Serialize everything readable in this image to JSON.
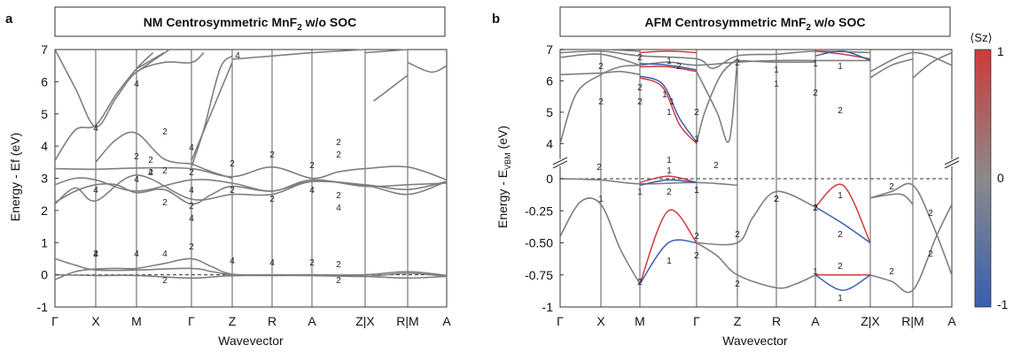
{
  "colors": {
    "band": "#7f7f7f",
    "up": "#d03a3a",
    "down": "#3a5fb0",
    "kpath": "#333333"
  },
  "panel_a": {
    "letter": "a",
    "title_main": "NM Centrosymmetric MnF",
    "title_sub": "2",
    "title_tail": " w/o SOC"
  },
  "panel_b": {
    "letter": "b",
    "title_main": "AFM Centrosymmetric MnF",
    "title_sub": "2",
    "title_tail": " w/o SOC"
  },
  "colorbar": {
    "title": "⟨Sz⟩",
    "ticks": [
      "1",
      "0",
      "-1"
    ]
  },
  "chart_data": [
    {
      "type": "line",
      "title": "NM Centrosymmetric MnF2 w/o SOC",
      "xlabel": "Wavevector",
      "ylabel": "Energy - Ef (eV)",
      "ylim": [
        -1,
        7
      ],
      "yticks": [
        "7",
        "6",
        "5",
        "4",
        "3",
        "2",
        "1",
        "0",
        "-1"
      ],
      "kpath": [
        "Γ",
        "X",
        "M",
        "Γ",
        "Z",
        "R",
        "A",
        "Z|X",
        "R|M",
        "A"
      ],
      "fermi_level": 0,
      "degeneracy_labels": [
        "4",
        "4",
        "4",
        "2",
        "2",
        "4",
        "4",
        "2",
        "2",
        "2",
        "2",
        "4",
        "2",
        "4",
        "2",
        "2",
        "4",
        "4",
        "2",
        "2",
        "2",
        "4",
        "2",
        "2",
        "2",
        "4",
        "2",
        "2",
        "2",
        "4",
        "2",
        "4",
        "4",
        "4",
        "4",
        "2",
        "2",
        "2"
      ],
      "series": [
        {
          "values": [
            [
              0,
              -0.15
            ],
            [
              0.5,
              0.1
            ],
            [
              1,
              0.18
            ],
            [
              1.5,
              0.2
            ],
            [
              2,
              0.2
            ],
            [
              2.5,
              0.35
            ],
            [
              3,
              0.5
            ],
            [
              3.5,
              0.25
            ],
            [
              4,
              0.02
            ],
            [
              5,
              0
            ],
            [
              6,
              0
            ],
            [
              7,
              0
            ]
          ]
        },
        {
          "values": [
            [
              0,
              0.5
            ],
            [
              0.5,
              0.3
            ],
            [
              1,
              0.15
            ],
            [
              2,
              0.15
            ],
            [
              3,
              0.2
            ],
            [
              4,
              0
            ]
          ]
        },
        {
          "values": [
            [
              0,
              0
            ],
            [
              1,
              -0.02
            ],
            [
              2,
              -0.02
            ],
            [
              3,
              -0.1
            ],
            [
              4,
              -0.03
            ],
            [
              6,
              -0.02
            ],
            [
              7,
              -0.05
            ]
          ]
        },
        {
          "values": [
            [
              0,
              2.25
            ],
            [
              0.5,
              2.6
            ],
            [
              1,
              2.8
            ],
            [
              1.5,
              2.8
            ],
            [
              2,
              2.55
            ],
            [
              2.5,
              2.65
            ],
            [
              3,
              2.2
            ],
            [
              3.5,
              2.5
            ],
            [
              4,
              2.75
            ],
            [
              5,
              2.6
            ],
            [
              6,
              2.9
            ],
            [
              7,
              2.78
            ]
          ]
        },
        {
          "values": [
            [
              0,
              3.3
            ],
            [
              1,
              3.28
            ],
            [
              2,
              3.32
            ],
            [
              3,
              3.3
            ],
            [
              4,
              3.05
            ],
            [
              5,
              3.35
            ],
            [
              6,
              3.0
            ],
            [
              7,
              3.3
            ]
          ]
        },
        {
          "values": [
            [
              0,
              3.5
            ],
            [
              0.5,
              4.5
            ],
            [
              1,
              4.6
            ],
            [
              1.5,
              5.6
            ],
            [
              2,
              6.4
            ],
            [
              2.5,
              6.9
            ],
            [
              3,
              7
            ]
          ]
        }
      ]
    },
    {
      "type": "line",
      "title": "AFM Centrosymmetric MnF2 w/o SOC",
      "xlabel": "Wavevector",
      "ylabel": "Energy - E_VBM (eV)",
      "yticks_upper": [
        "7",
        "6",
        "5",
        "4"
      ],
      "yticks_lower": [
        "0",
        "-0.25",
        "-0.50",
        "-0.75",
        "-1"
      ],
      "ylim_upper": [
        3.5,
        7
      ],
      "ylim_lower": [
        -1,
        0.05
      ],
      "broken_axis": true,
      "kpath": [
        "Γ",
        "X",
        "M",
        "Γ",
        "Z",
        "R",
        "A",
        "Z|X",
        "R|M",
        "A"
      ],
      "degeneracy_labels": [
        "2",
        "2",
        "2",
        "2",
        "1",
        "1",
        "1",
        "2",
        "2",
        "1",
        "1",
        "2",
        "1",
        "2",
        "1",
        "2",
        "2",
        "1",
        "1",
        "2",
        "1",
        "1",
        "1",
        "2",
        "1",
        "2",
        "2",
        "2",
        "2",
        "2",
        "2",
        "1",
        "2",
        "2",
        "1",
        "1",
        "2",
        "1",
        "2",
        "1",
        "2",
        "2",
        "2",
        "2",
        "2",
        "1",
        "1"
      ],
      "colorbar_label": "⟨Sz⟩",
      "colorbar_range": [
        -1,
        1
      ],
      "series": [
        {
          "values": [
            [
              0,
              4.0
            ],
            [
              0.5,
              5.6
            ],
            [
              1,
              6.2
            ],
            [
              2,
              6.4
            ],
            [
              3,
              6.3
            ],
            [
              4,
              6.6
            ],
            [
              5,
              6.7
            ],
            [
              6,
              6.65
            ],
            [
              7,
              6.65
            ]
          ]
        },
        {
          "values": [
            [
              2,
              6.1
            ],
            [
              2.5,
              5.0
            ],
            [
              3,
              4.0
            ]
          ],
          "spin": "up"
        },
        {
          "values": [
            [
              2,
              6.15
            ],
            [
              2.5,
              5.1
            ],
            [
              3,
              4.0
            ]
          ],
          "spin": "down"
        },
        {
          "values": [
            [
              0,
              -0.45
            ],
            [
              0.5,
              -0.2
            ],
            [
              1,
              -0.3
            ],
            [
              1.5,
              -0.6
            ],
            [
              2,
              -0.82
            ],
            [
              3,
              -0.5
            ],
            [
              4,
              -0.85
            ],
            [
              5,
              -0.9
            ],
            [
              6,
              -0.7
            ],
            [
              7,
              -0.75
            ]
          ]
        },
        {
          "values": [
            [
              2,
              -0.82
            ],
            [
              2.5,
              -0.25
            ],
            [
              3,
              -0.5
            ]
          ],
          "spin": "up"
        },
        {
          "values": [
            [
              2,
              -0.82
            ],
            [
              2.5,
              -0.5
            ],
            [
              3,
              -0.5
            ]
          ],
          "spin": "down"
        },
        {
          "values": [
            [
              6,
              -0.22
            ],
            [
              6.5,
              -0.05
            ],
            [
              7,
              -0.5
            ]
          ],
          "spin": "up"
        },
        {
          "values": [
            [
              6,
              -0.22
            ],
            [
              6.5,
              -0.35
            ],
            [
              7,
              -0.5
            ]
          ],
          "spin": "down"
        },
        {
          "values": [
            [
              6,
              -0.75
            ],
            [
              6.5,
              -0.75
            ],
            [
              7,
              -0.75
            ]
          ],
          "spin": "up"
        },
        {
          "values": [
            [
              6,
              -0.75
            ],
            [
              6.5,
              -0.87
            ],
            [
              7,
              -0.75
            ]
          ],
          "spin": "down"
        },
        {
          "values": [
            [
              0,
              0
            ],
            [
              1,
              -0.01
            ],
            [
              2,
              -0.04
            ],
            [
              2.5,
              0.02
            ],
            [
              3,
              -0.03
            ],
            [
              4,
              -0.05
            ]
          ]
        }
      ]
    }
  ]
}
